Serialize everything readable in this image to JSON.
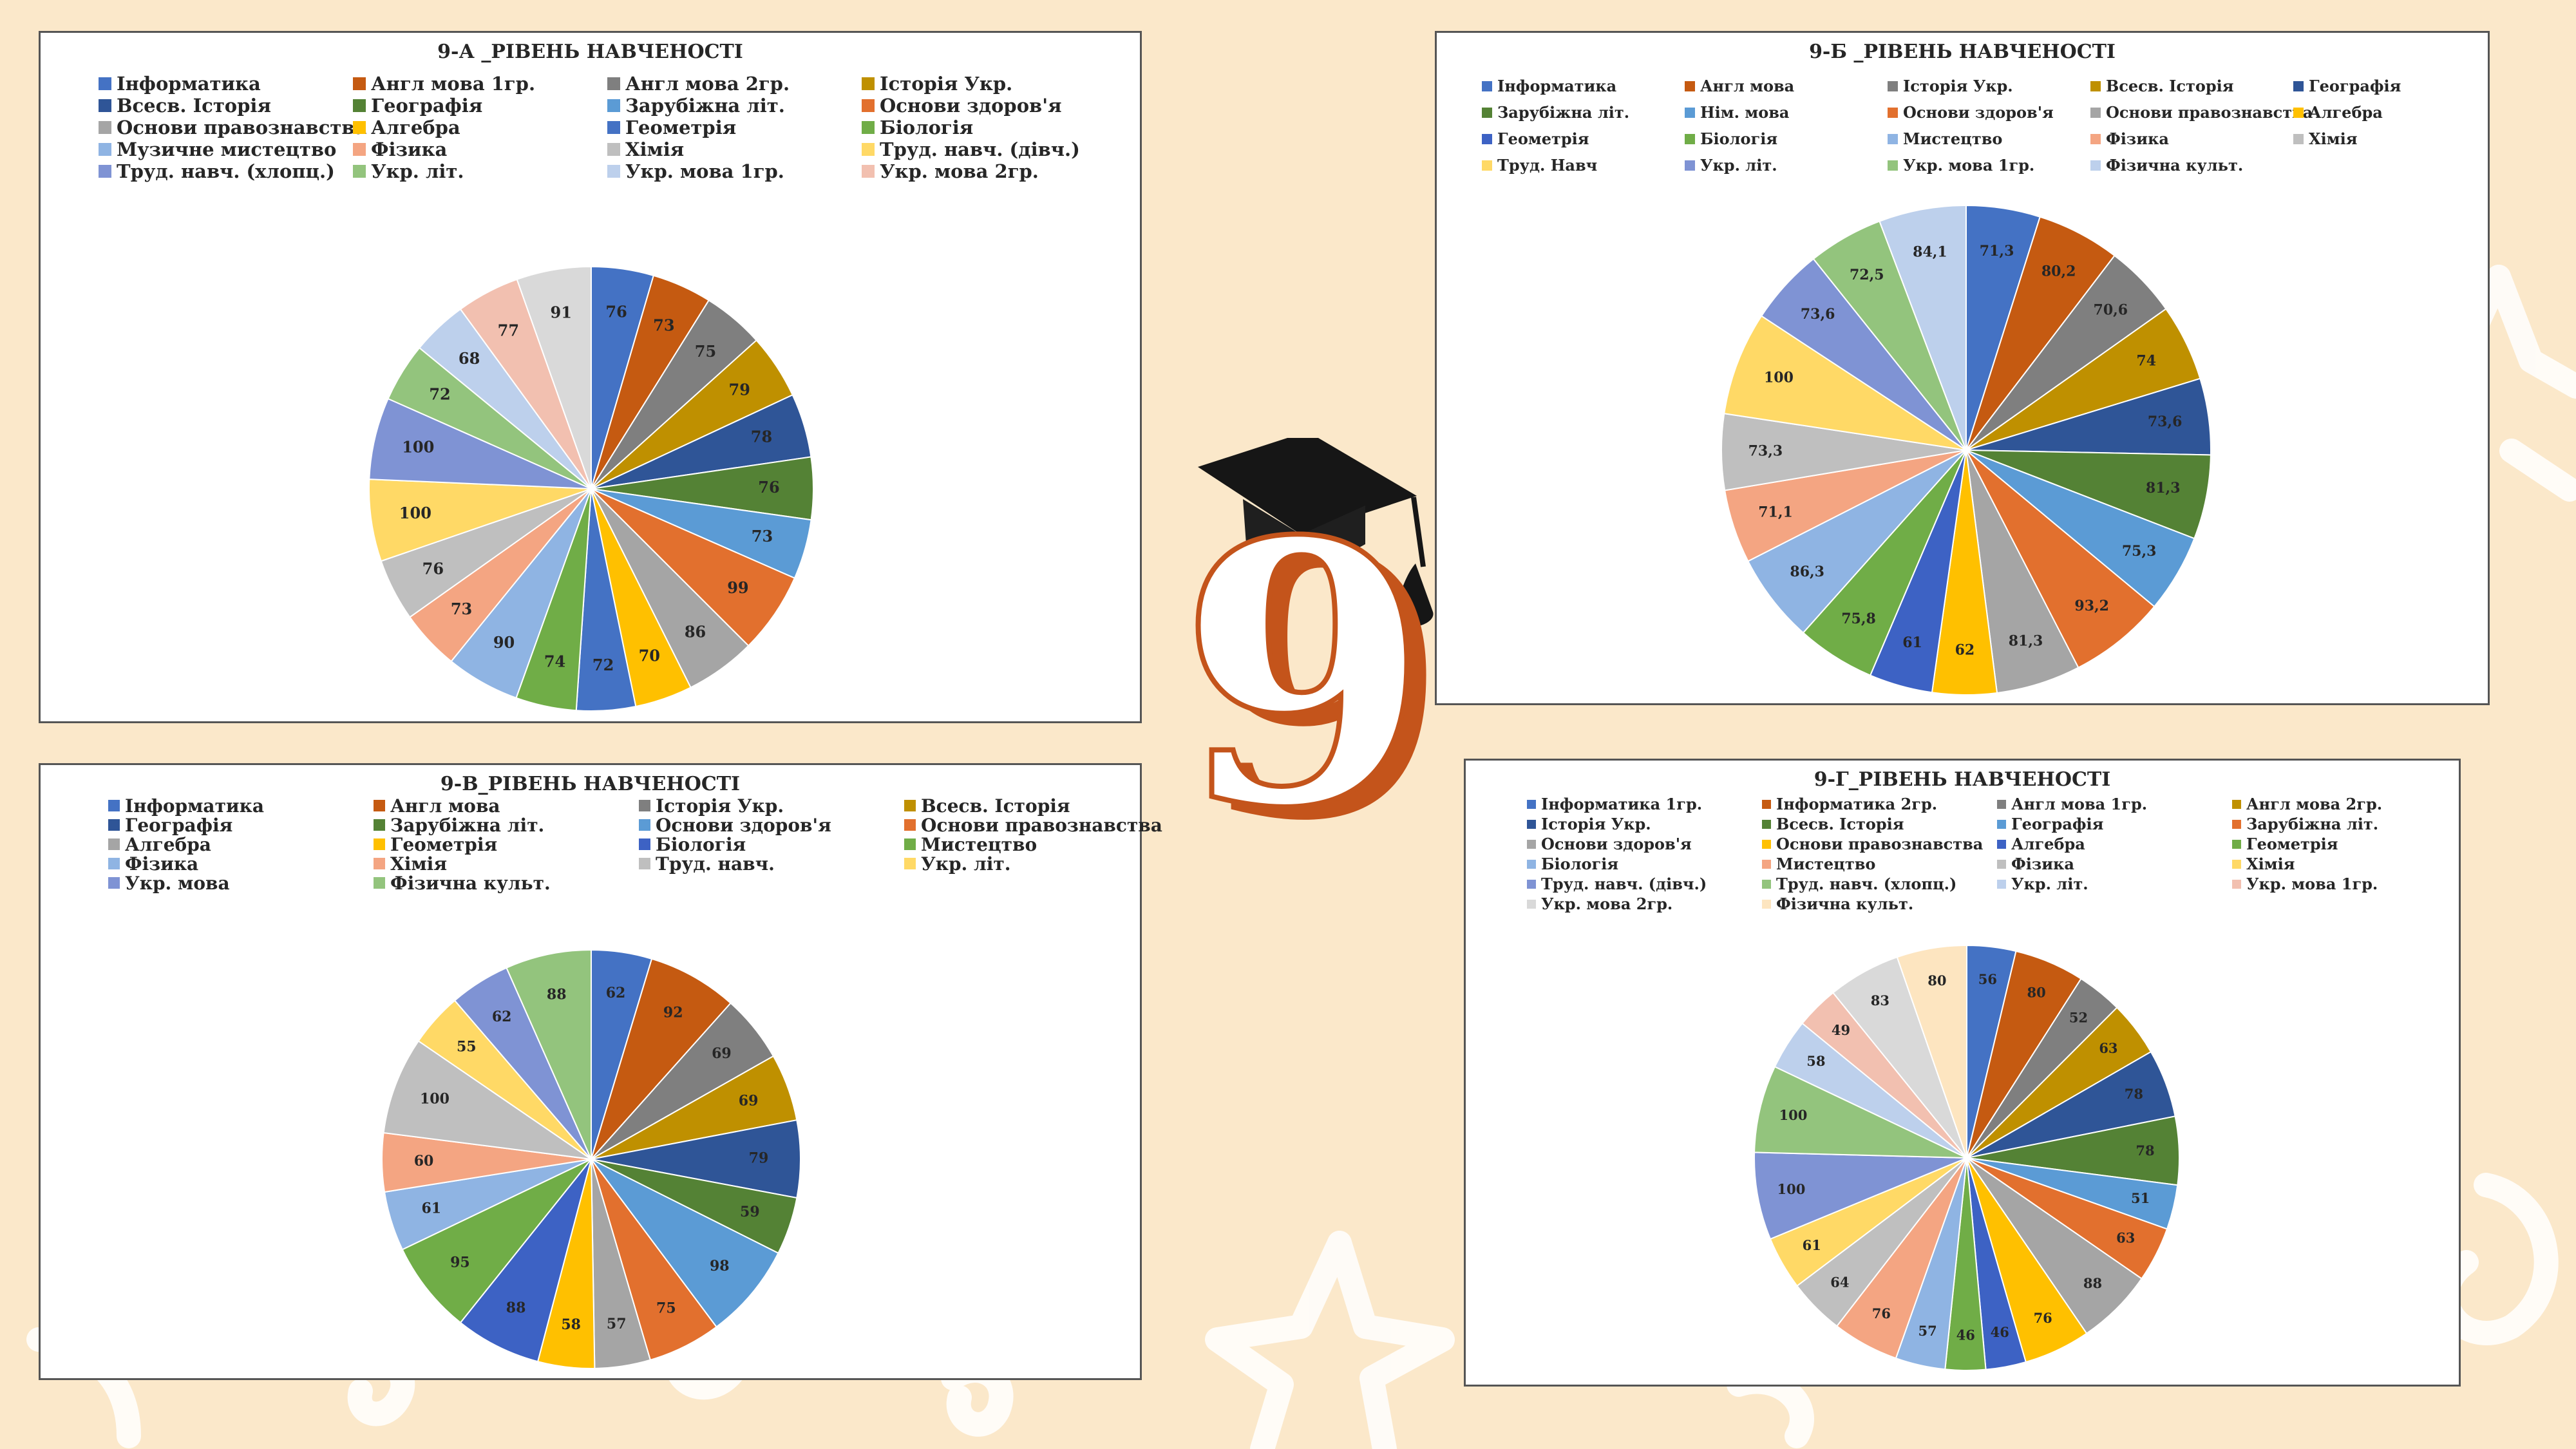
{
  "panels": [
    {
      "id": "pA",
      "chart_data": {
        "type": "pie",
        "title": "9-А _РІВЕНЬ НАВЧЕНОСТІ",
        "categories": [
          "Інформатика",
          "Англ мова 1гр.",
          "Англ мова 2гр.",
          "Історія Укр.",
          "Всесв. Історія",
          "Географія",
          "Зарубіжна літ.",
          "Основи здоров'я",
          "Основи правознавства",
          "Алгебра",
          "Геометрія",
          "Біологія",
          "Музичне мистецтво",
          "Фізика",
          "Хімія",
          "Труд. навч. (дівч.)",
          "Труд. навч. (хлопц.)",
          "Укр. літ.",
          "Укр. мова 1гр.",
          "Укр. мова 2гр.",
          ""
        ],
        "values": [
          76,
          73,
          75,
          79,
          78,
          76,
          73,
          99,
          86,
          70,
          72,
          74,
          90,
          73,
          76,
          100,
          100,
          72,
          68,
          77,
          91
        ],
        "legend": "top",
        "colors": [
          "#4472c4",
          "#c55a11",
          "#7f7f7f",
          "#bf9000",
          "#2f5597",
          "#548235",
          "#5b9bd5",
          "#e2702e",
          "#a5a5a5",
          "#ffc000",
          "#4472c4",
          "#70ad47",
          "#8fb4e3",
          "#f4a582",
          "#bfbfbf",
          "#ffd966",
          "#7f93d4",
          "#93c47d",
          "#bdd0ec",
          "#f2c0b0",
          "#d9d9d9"
        ]
      }
    },
    {
      "id": "pB",
      "chart_data": {
        "type": "pie",
        "title": "9-Б _РІВЕНЬ НАВЧЕНОСТІ",
        "categories": [
          "Інформатика",
          "Англ мова",
          "Історія Укр.",
          "Всесв. Історія",
          "Географія",
          "Зарубіжна літ.",
          "Нім. мова",
          "Основи здоров'я",
          "Основи правознавства",
          "Алгебра",
          "Геометрія",
          "Біологія",
          "Мистецтво",
          "Фізика",
          "Хімія",
          "Труд. Навч",
          "Укр. літ.",
          "Укр. мова 1гр.",
          "Фізична культ."
        ],
        "values": [
          71.3,
          80.2,
          70.6,
          74,
          73.6,
          81.3,
          75.3,
          93.2,
          81.3,
          62,
          61,
          75.8,
          86.3,
          71.1,
          73.3,
          100,
          73.6,
          72.5,
          84.1
        ],
        "labels": [
          "71,3",
          "80,2",
          "70,6",
          "74",
          "73,6",
          "81,3",
          "75,3",
          "93,2",
          "81,3",
          "62",
          "61",
          "75,8",
          "86,3",
          "71,1",
          "73,3",
          "100",
          "73,6",
          "72,5",
          "84,1"
        ],
        "legend": "top",
        "colors": [
          "#4472c4",
          "#c55a11",
          "#7f7f7f",
          "#bf9000",
          "#2f5597",
          "#548235",
          "#5b9bd5",
          "#e2702e",
          "#a5a5a5",
          "#ffc000",
          "#3d62c4",
          "#70ad47",
          "#8fb4e3",
          "#f4a582",
          "#bfbfbf",
          "#ffd966",
          "#7f93d4",
          "#93c47d",
          "#bdd0ec"
        ]
      }
    },
    {
      "id": "pC",
      "chart_data": {
        "type": "pie",
        "title": "9-В_РІВЕНЬ НАВЧЕНОСТІ",
        "categories": [
          "Інформатика",
          "Англ мова",
          "Історія Укр.",
          "Всесв. Історія",
          "Географія",
          "Зарубіжна літ.",
          "Основи здоров'я",
          "Основи правознавства",
          "Алгебра",
          "Геометрія",
          "Біологія",
          "Мистецтво",
          "Фізика",
          "Хімія",
          "Труд. навч.",
          "Укр. літ.",
          "Укр. мова",
          "Фізична культ."
        ],
        "values": [
          62,
          92,
          69,
          69,
          79,
          59,
          98,
          75,
          57,
          58,
          88,
          95,
          61,
          60,
          100,
          55,
          62,
          88
        ],
        "legend": "top",
        "colors": [
          "#4472c4",
          "#c55a11",
          "#7f7f7f",
          "#bf9000",
          "#2f5597",
          "#548235",
          "#5b9bd5",
          "#e2702e",
          "#a5a5a5",
          "#ffc000",
          "#3d62c4",
          "#70ad47",
          "#8fb4e3",
          "#f4a582",
          "#bfbfbf",
          "#ffd966",
          "#7f93d4",
          "#93c47d"
        ]
      }
    },
    {
      "id": "pD",
      "chart_data": {
        "type": "pie",
        "title": "9-Г_РІВЕНЬ НАВЧЕНОСТІ",
        "categories": [
          "Інформатика 1гр.",
          "Інформатика 2гр.",
          "Англ мова 1гр.",
          "Англ мова 2гр.",
          "Історія Укр.",
          "Всесв. Історія",
          "Географія",
          "Зарубіжна літ.",
          "Основи здоров'я",
          "Основи правознавства",
          "Алгебра",
          "Геометрія",
          "Біологія",
          "Мистецтво",
          "Фізика",
          "Хімія",
          "Труд. навч. (дівч.)",
          "Труд. навч. (хлопц.)",
          "Укр. літ.",
          "Укр. мова 1гр.",
          "Укр. мова 2гр.",
          "Фізична культ."
        ],
        "values": [
          56,
          80,
          52,
          63,
          78,
          78,
          51,
          63,
          88,
          76,
          46,
          46,
          57,
          76,
          64,
          61,
          100,
          100,
          58,
          49,
          83,
          80
        ],
        "legend": "top",
        "colors": [
          "#4472c4",
          "#c55a11",
          "#7f7f7f",
          "#bf9000",
          "#2f5597",
          "#548235",
          "#5b9bd5",
          "#e2702e",
          "#a5a5a5",
          "#ffc000",
          "#3d62c4",
          "#70ad47",
          "#8fb4e3",
          "#f4a582",
          "#bfbfbf",
          "#ffd966",
          "#7f93d4",
          "#93c47d",
          "#bdd0ec",
          "#f2c0b0",
          "#d9d9d9",
          "#fde5c0"
        ]
      }
    }
  ],
  "logo": {
    "digit": "9"
  }
}
